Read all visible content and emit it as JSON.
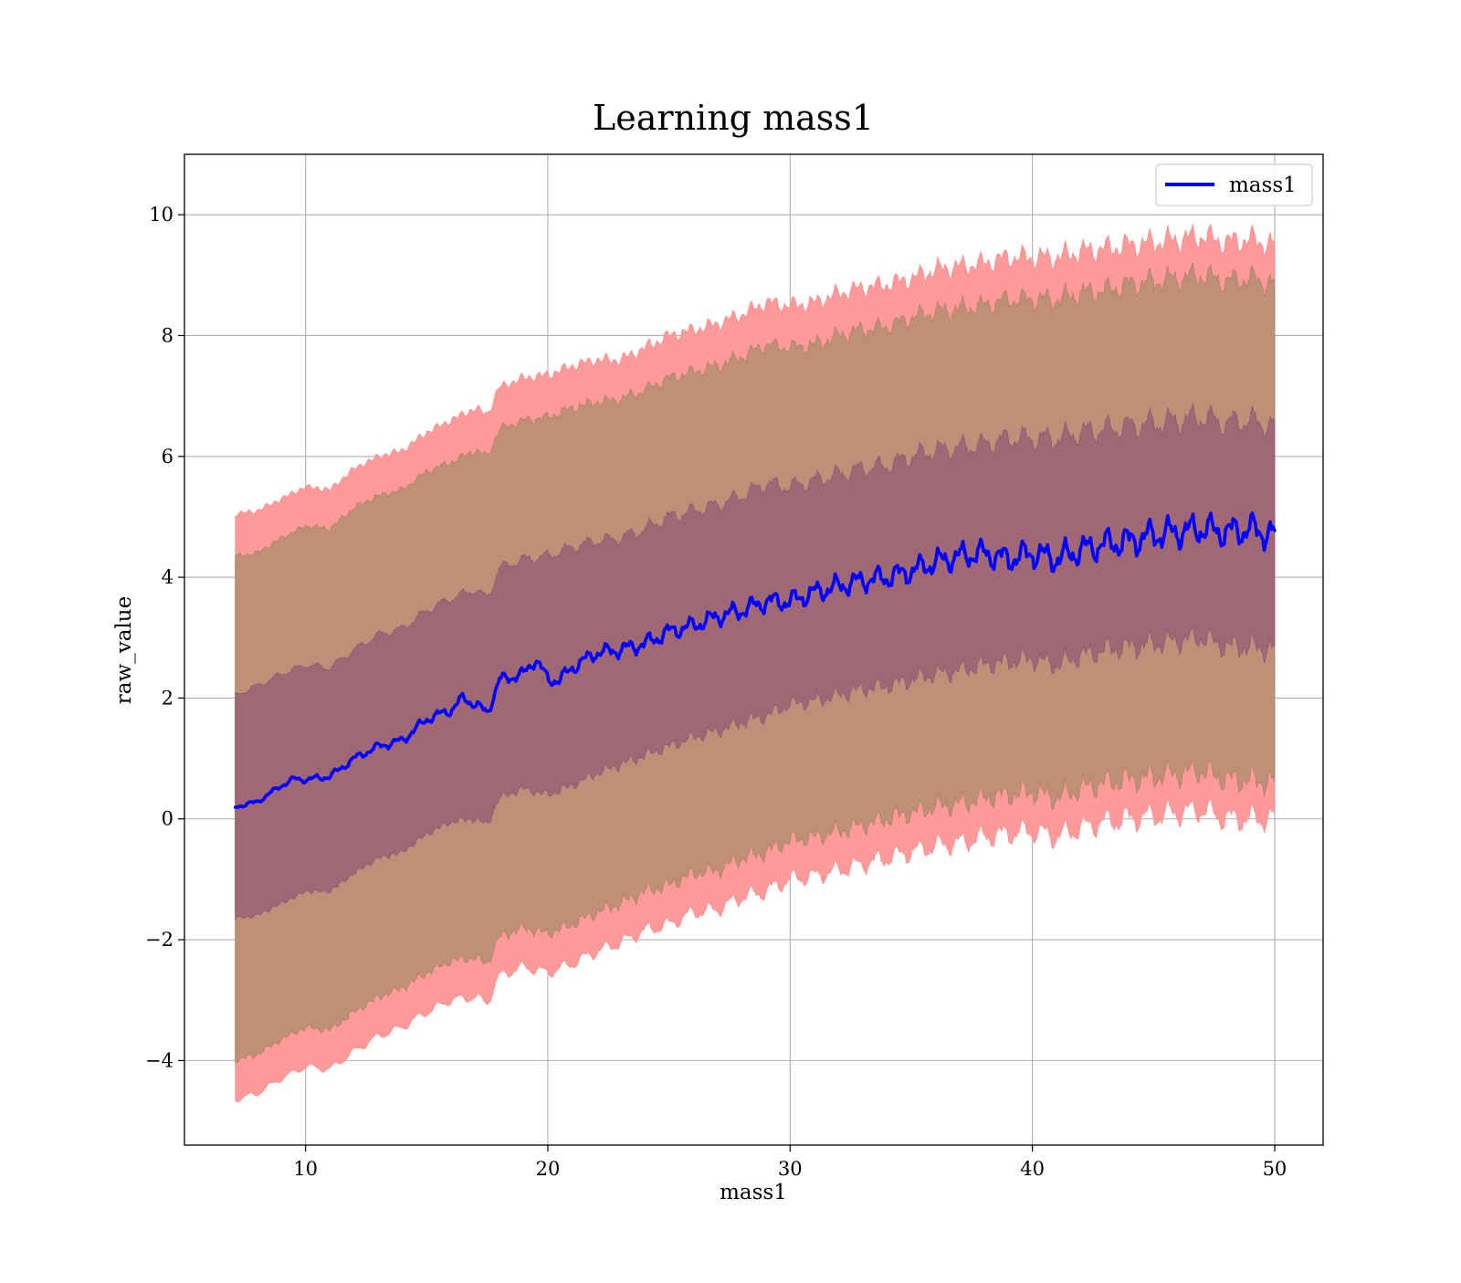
{
  "chart_data": {
    "type": "area",
    "title": "Learning mass1",
    "xlabel": "mass1",
    "ylabel": "raw_value",
    "xlim": [
      5,
      52
    ],
    "ylim": [
      -5.4,
      11
    ],
    "grid": true,
    "legend_position": "top-right",
    "x_ticks": [
      10,
      20,
      30,
      40,
      50
    ],
    "x_tick_labels": [
      "10",
      "20",
      "30",
      "40",
      "50"
    ],
    "y_ticks": [
      -4,
      -2,
      0,
      2,
      4,
      6,
      8,
      10
    ],
    "y_tick_labels": [
      "−4",
      "−2",
      "0",
      "2",
      "4",
      "6",
      "8",
      "10"
    ],
    "colors": {
      "line": "#0000ff",
      "outer_band": "#ff9a9a",
      "middle_band": "#c08f77",
      "inner_band": "#a06876",
      "grid": "#b0b0b0"
    },
    "series": [
      {
        "name": "mass1",
        "x": [
          7.1,
          8,
          9,
          9.5,
          10,
          11,
          12,
          13,
          14,
          15,
          16,
          16.5,
          17,
          17.5,
          18,
          19,
          19.5,
          20,
          20.5,
          21,
          22,
          23,
          24,
          25,
          26,
          27,
          28,
          29,
          30,
          31,
          32,
          33,
          34,
          35,
          36,
          37,
          38,
          39,
          40,
          41,
          42,
          43,
          44,
          45,
          46,
          47,
          48,
          49,
          50
        ],
        "y": [
          0.2,
          0.28,
          0.55,
          0.66,
          0.65,
          0.7,
          1.0,
          1.2,
          1.3,
          1.65,
          1.8,
          2.0,
          1.9,
          1.75,
          2.3,
          2.4,
          2.65,
          2.3,
          2.3,
          2.5,
          2.75,
          2.8,
          2.9,
          3.1,
          3.2,
          3.35,
          3.45,
          3.6,
          3.6,
          3.75,
          3.85,
          3.95,
          4.0,
          4.1,
          4.25,
          4.35,
          4.4,
          4.3,
          4.4,
          4.3,
          4.45,
          4.55,
          4.6,
          4.7,
          4.75,
          4.8,
          4.75,
          4.8,
          4.7
        ]
      },
      {
        "name": "",
        "x": [
          7.1,
          8,
          9,
          10,
          11,
          12,
          13,
          14,
          15,
          16,
          17,
          17.5,
          18,
          19,
          20,
          21,
          22,
          23,
          24,
          25,
          26,
          27,
          28,
          29,
          30,
          31,
          32,
          33,
          34,
          35,
          36,
          37,
          38,
          39,
          40,
          41,
          42,
          43,
          44,
          45,
          46,
          47,
          48,
          49,
          50
        ],
        "upper": [
          5.05,
          5.1,
          5.3,
          5.5,
          5.45,
          5.8,
          6.0,
          6.1,
          6.4,
          6.6,
          6.8,
          6.7,
          7.15,
          7.3,
          7.35,
          7.5,
          7.6,
          7.6,
          7.8,
          8.0,
          8.1,
          8.2,
          8.35,
          8.55,
          8.5,
          8.55,
          8.7,
          8.8,
          8.85,
          8.95,
          9.1,
          9.15,
          9.2,
          9.3,
          9.3,
          9.3,
          9.4,
          9.45,
          9.5,
          9.55,
          9.6,
          9.65,
          9.55,
          9.6,
          9.5
        ],
        "lower": [
          -4.65,
          -4.55,
          -4.3,
          -4.1,
          -4.15,
          -3.85,
          -3.6,
          -3.45,
          -3.2,
          -3.0,
          -2.95,
          -3.05,
          -2.6,
          -2.45,
          -2.55,
          -2.4,
          -2.2,
          -2.05,
          -1.85,
          -1.75,
          -1.55,
          -1.5,
          -1.3,
          -1.2,
          -1.0,
          -0.95,
          -0.85,
          -0.75,
          -0.65,
          -0.55,
          -0.45,
          -0.4,
          -0.3,
          -0.25,
          -0.2,
          -0.3,
          -0.15,
          -0.05,
          0.0,
          0.05,
          0.1,
          0.15,
          0.0,
          0.0,
          0.0
        ]
      },
      {
        "name": "",
        "x": [
          7.1,
          8,
          9,
          10,
          11,
          12,
          13,
          14,
          15,
          16,
          17,
          17.5,
          18,
          19,
          20,
          21,
          22,
          23,
          24,
          25,
          26,
          27,
          28,
          29,
          30,
          31,
          32,
          33,
          34,
          35,
          36,
          37,
          38,
          39,
          40,
          41,
          42,
          43,
          44,
          45,
          46,
          47,
          48,
          49,
          50
        ],
        "upper": [
          4.35,
          4.4,
          4.65,
          4.85,
          4.8,
          5.15,
          5.35,
          5.45,
          5.75,
          5.9,
          6.1,
          6.0,
          6.45,
          6.6,
          6.65,
          6.8,
          6.9,
          6.95,
          7.1,
          7.3,
          7.4,
          7.5,
          7.65,
          7.85,
          7.8,
          7.85,
          8.0,
          8.1,
          8.15,
          8.3,
          8.4,
          8.45,
          8.5,
          8.6,
          8.6,
          8.6,
          8.7,
          8.75,
          8.85,
          8.9,
          8.95,
          9.0,
          8.9,
          8.95,
          8.85
        ],
        "lower": [
          -4.0,
          -3.9,
          -3.65,
          -3.45,
          -3.5,
          -3.2,
          -2.95,
          -2.8,
          -2.55,
          -2.35,
          -2.3,
          -2.4,
          -1.95,
          -1.8,
          -1.9,
          -1.75,
          -1.55,
          -1.4,
          -1.2,
          -1.1,
          -0.9,
          -0.85,
          -0.65,
          -0.55,
          -0.35,
          -0.3,
          -0.2,
          -0.1,
          0.0,
          0.1,
          0.2,
          0.25,
          0.35,
          0.4,
          0.45,
          0.35,
          0.5,
          0.6,
          0.65,
          0.7,
          0.75,
          0.8,
          0.65,
          0.65,
          0.6
        ]
      },
      {
        "name": "",
        "x": [
          7.1,
          8,
          9,
          10,
          11,
          12,
          13,
          14,
          15,
          16,
          17,
          17.5,
          18,
          19,
          20,
          21,
          22,
          23,
          24,
          25,
          26,
          27,
          28,
          29,
          30,
          31,
          32,
          33,
          34,
          35,
          36,
          37,
          38,
          39,
          40,
          41,
          42,
          43,
          44,
          45,
          46,
          47,
          48,
          49,
          50
        ],
        "upper": [
          2.05,
          2.2,
          2.4,
          2.55,
          2.5,
          2.8,
          3.05,
          3.15,
          3.45,
          3.65,
          3.8,
          3.65,
          4.15,
          4.3,
          4.35,
          4.5,
          4.6,
          4.65,
          4.8,
          5.0,
          5.1,
          5.2,
          5.35,
          5.55,
          5.5,
          5.6,
          5.7,
          5.8,
          5.85,
          6.0,
          6.1,
          6.15,
          6.2,
          6.3,
          6.3,
          6.3,
          6.4,
          6.45,
          6.5,
          6.55,
          6.6,
          6.65,
          6.55,
          6.6,
          6.5
        ],
        "lower": [
          -1.65,
          -1.6,
          -1.4,
          -1.2,
          -1.2,
          -0.9,
          -0.65,
          -0.55,
          -0.25,
          -0.05,
          0.0,
          -0.1,
          0.35,
          0.5,
          0.4,
          0.55,
          0.75,
          0.9,
          1.05,
          1.2,
          1.35,
          1.45,
          1.6,
          1.7,
          1.9,
          1.95,
          2.05,
          2.15,
          2.2,
          2.3,
          2.4,
          2.45,
          2.55,
          2.6,
          2.65,
          2.55,
          2.7,
          2.8,
          2.85,
          2.9,
          2.95,
          3.0,
          2.85,
          2.85,
          2.8
        ]
      }
    ]
  }
}
